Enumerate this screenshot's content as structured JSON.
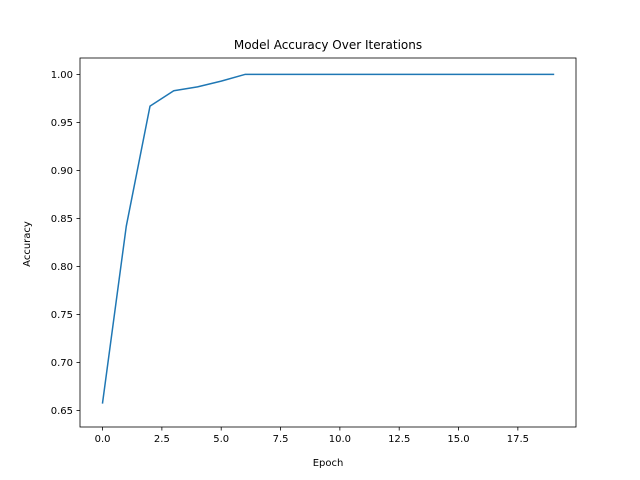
{
  "chart_data": {
    "type": "line",
    "title": "Model Accuracy Over Iterations",
    "xlabel": "Epoch",
    "ylabel": "Accuracy",
    "xlim": [
      -0.95,
      19.95
    ],
    "ylim": [
      0.6329,
      1.0171
    ],
    "xticks": [
      0,
      2.5,
      5,
      7.5,
      10,
      12.5,
      15,
      17.5
    ],
    "xtick_labels": [
      "0.0",
      "2.5",
      "5.0",
      "7.5",
      "10.0",
      "12.5",
      "15.0",
      "17.5"
    ],
    "yticks": [
      0.65,
      0.7,
      0.75,
      0.8,
      0.85,
      0.9,
      0.95,
      1.0
    ],
    "ytick_labels": [
      "0.65",
      "0.70",
      "0.75",
      "0.80",
      "0.85",
      "0.90",
      "0.95",
      "1.00"
    ],
    "grid": false,
    "series": [
      {
        "color": "#1f77b4",
        "x": [
          0,
          1,
          2,
          3,
          4,
          5,
          6,
          7,
          8,
          9,
          10,
          11,
          12,
          13,
          14,
          15,
          16,
          17,
          18,
          19
        ],
        "values": [
          0.658,
          0.842,
          0.967,
          0.983,
          0.987,
          0.993,
          1.0,
          1.0,
          1.0,
          1.0,
          1.0,
          1.0,
          1.0,
          1.0,
          1.0,
          1.0,
          1.0,
          1.0,
          1.0,
          1.0
        ]
      }
    ]
  }
}
